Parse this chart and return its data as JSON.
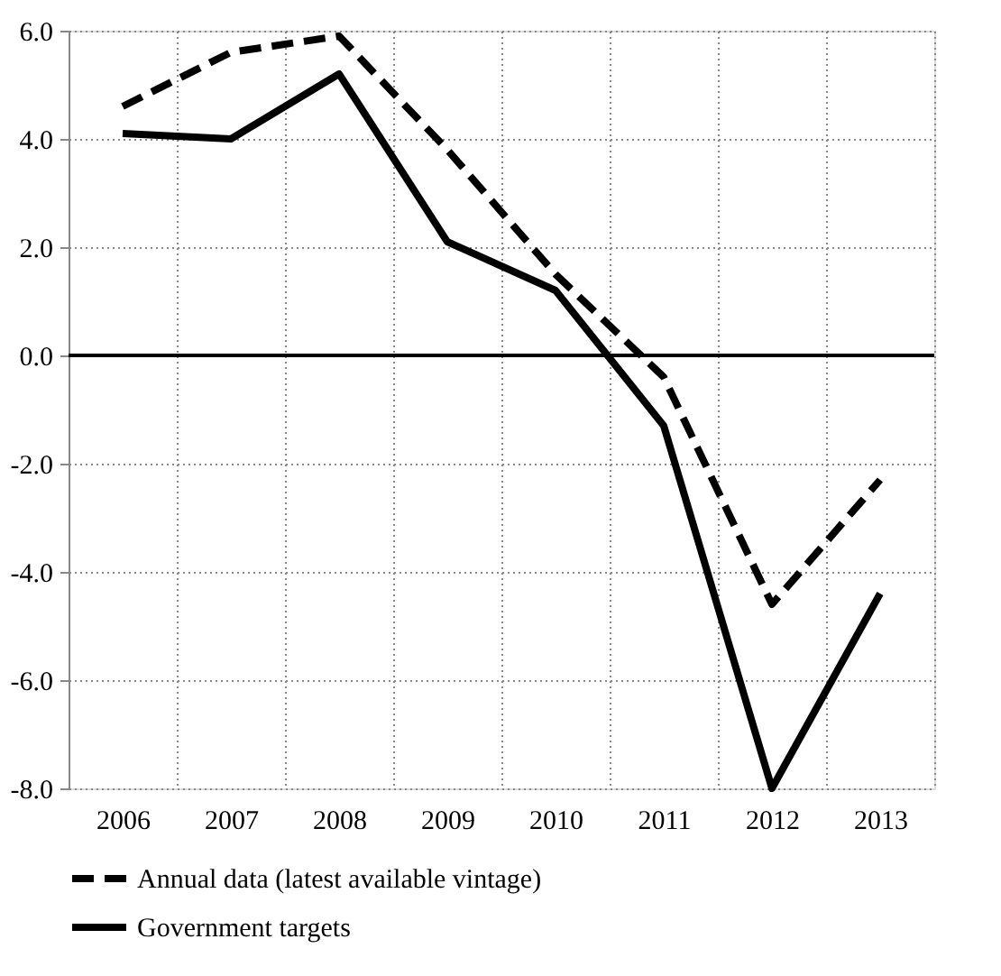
{
  "chart_data": {
    "type": "line",
    "categories": [
      "2006",
      "2007",
      "2008",
      "2009",
      "2010",
      "2011",
      "2012",
      "2013"
    ],
    "series": [
      {
        "name": "Annual data (latest available vintage)",
        "color": "#000000",
        "line_style": "dashed",
        "values": [
          4.6,
          5.6,
          5.9,
          3.8,
          1.5,
          -0.4,
          -4.6,
          -2.3
        ]
      },
      {
        "name": "Government targets",
        "color": "#000000",
        "line_style": "solid",
        "values": [
          4.1,
          4.0,
          5.2,
          2.1,
          1.2,
          -1.3,
          -8.0,
          -4.4
        ]
      }
    ],
    "ylim": [
      -8.0,
      6.0
    ],
    "yticks": [
      {
        "value": -8,
        "label": "-8.0"
      },
      {
        "value": -6,
        "label": "-6.0"
      },
      {
        "value": -4,
        "label": "-4.0"
      },
      {
        "value": -2,
        "label": "-2.0"
      },
      {
        "value": 0,
        "label": "0.0"
      },
      {
        "value": 2,
        "label": "2.0"
      },
      {
        "value": 4,
        "label": "4.0"
      },
      {
        "value": 6,
        "label": "6.0"
      }
    ],
    "ref_lines": [
      {
        "axis": "y",
        "value": 0,
        "color": "#000000"
      }
    ],
    "grid": true,
    "legend": "bottom",
    "marker": "none"
  }
}
